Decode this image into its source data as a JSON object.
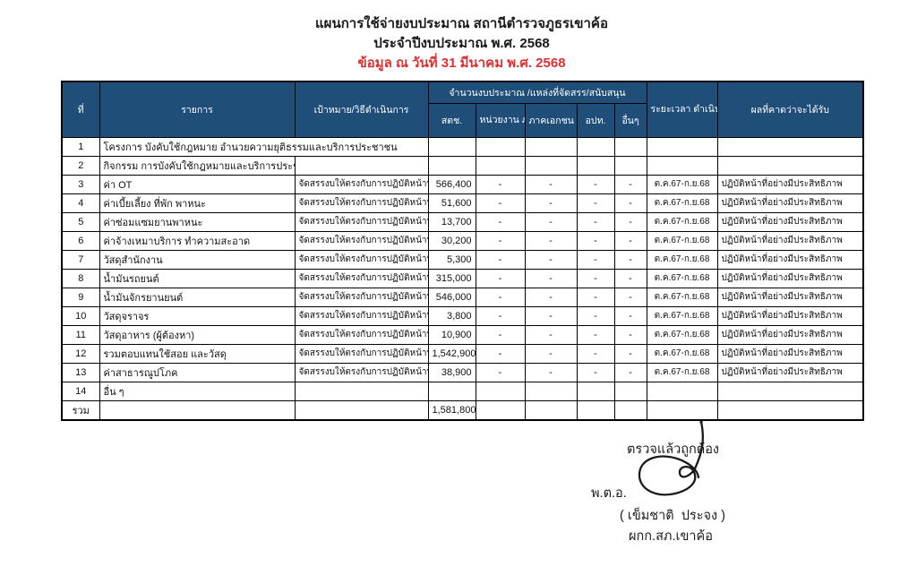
{
  "title": {
    "line1": "แผนการใช้จ่ายงบประมาณ สถานีตำรวจภูธรเขาค้อ",
    "line2": "ประจำปีงบประมาณ พ.ศ. 2568",
    "date_line": "ข้อมูล ณ วันที่ 31 มีนาคม พ.ศ. 2568"
  },
  "colors": {
    "header_bg": "#1F4E79",
    "header_text": "#FFFFFF",
    "date_red": "#E03030",
    "border": "#000000"
  },
  "table": {
    "headers": {
      "no": "ที่",
      "item": "รายการ",
      "target": "เป้าหมาย/วิธีดำเนินการ",
      "budget_group": "จำนวนงบประมาณ /แหล่งที่จัดสรร/สนับสนุน",
      "sources": [
        "สตช.",
        "หน่วยงาน\nภาครัฐ",
        "ภาคเอกชน",
        "อปท.",
        "อื่นๆ"
      ],
      "duration": "ระยะเวลา\nดำเนินการ",
      "result": "ผลที่คาดว่าจะได้รับ"
    },
    "rows": [
      {
        "no": "1",
        "item": "โครงการ บังคับใช้กฎหมาย อำนวยความยุติธรรมและบริการประชาชน",
        "merge": true,
        "target": "",
        "amount": "",
        "gov": "",
        "private": "",
        "local": "",
        "other": "",
        "duration": "",
        "result": ""
      },
      {
        "no": "2",
        "item": "กิจกรรม การบังคับใช้กฎหมายและบริการประชาชน",
        "merge": false,
        "target": "",
        "amount": "",
        "gov": "",
        "private": "",
        "local": "",
        "other": "",
        "duration": "",
        "result": ""
      },
      {
        "no": "3",
        "item": "ค่า OT",
        "merge": false,
        "target": "จัดสรรงบให้ตรงกับการปฏิบัติหน้าที่",
        "amount": "566,400",
        "gov": "-",
        "private": "-",
        "local": "-",
        "other": "-",
        "duration": "ต.ค.67-ก.ย.68",
        "result": "ปฏิบัติหน้าที่อย่างมีประสิทธิภาพ"
      },
      {
        "no": "4",
        "item": "ค่าเบี้ยเลี้ยง ที่พัก พาหนะ",
        "merge": false,
        "target": "จัดสรรงบให้ตรงกับการปฏิบัติหน้าที่",
        "amount": "51,600",
        "gov": "-",
        "private": "-",
        "local": "-",
        "other": "-",
        "duration": "ต.ค.67-ก.ย.68",
        "result": "ปฏิบัติหน้าที่อย่างมีประสิทธิภาพ"
      },
      {
        "no": "5",
        "item": "ค่าซ่อมแซมยานพาหนะ",
        "merge": false,
        "target": "จัดสรรงบให้ตรงกับการปฏิบัติหน้าที่",
        "amount": "13,700",
        "gov": "-",
        "private": "-",
        "local": "-",
        "other": "-",
        "duration": "ต.ค.67-ก.ย.68",
        "result": "ปฏิบัติหน้าที่อย่างมีประสิทธิภาพ"
      },
      {
        "no": "6",
        "item": "ค่าจ้างเหมาบริการ ทำความสะอาด",
        "merge": false,
        "target": "จัดสรรงบให้ตรงกับการปฏิบัติหน้าที่",
        "amount": "30,200",
        "gov": "-",
        "private": "-",
        "local": "-",
        "other": "-",
        "duration": "ต.ค.67-ก.ย.68",
        "result": "ปฏิบัติหน้าที่อย่างมีประสิทธิภาพ"
      },
      {
        "no": "7",
        "item": "วัสดุสำนักงาน",
        "merge": false,
        "target": "จัดสรรงบให้ตรงกับการปฏิบัติหน้าที่",
        "amount": "5,300",
        "gov": "-",
        "private": "-",
        "local": "-",
        "other": "-",
        "duration": "ต.ค.67-ก.ย.68",
        "result": "ปฏิบัติหน้าที่อย่างมีประสิทธิภาพ"
      },
      {
        "no": "8",
        "item": "น้ำมันรถยนต์",
        "merge": false,
        "target": "จัดสรรงบให้ตรงกับการปฏิบัติหน้าที่",
        "amount": "315,000",
        "gov": "-",
        "private": "-",
        "local": "-",
        "other": "-",
        "duration": "ต.ค.67-ก.ย.68",
        "result": "ปฏิบัติหน้าที่อย่างมีประสิทธิภาพ"
      },
      {
        "no": "9",
        "item": "น้ำมันจักรยานยนต์",
        "merge": false,
        "target": "จัดสรรงบให้ตรงกับการปฏิบัติหน้าที่",
        "amount": "546,000",
        "gov": "-",
        "private": "-",
        "local": "-",
        "other": "-",
        "duration": "ต.ค.67-ก.ย.68",
        "result": "ปฏิบัติหน้าที่อย่างมีประสิทธิภาพ"
      },
      {
        "no": "10",
        "item": "วัสดุจราจร",
        "merge": false,
        "target": "จัดสรรงบให้ตรงกับการปฏิบัติหน้าที่",
        "amount": "3,800",
        "gov": "-",
        "private": "-",
        "local": "-",
        "other": "-",
        "duration": "ต.ค.67-ก.ย.68",
        "result": "ปฏิบัติหน้าที่อย่างมีประสิทธิภาพ"
      },
      {
        "no": "11",
        "item": "วัสดุอาหาร (ผู้ต้องหา)",
        "merge": false,
        "target": "จัดสรรงบให้ตรงกับการปฏิบัติหน้าที่",
        "amount": "10,900",
        "gov": "-",
        "private": "-",
        "local": "-",
        "other": "-",
        "duration": "ต.ค.67-ก.ย.68",
        "result": "ปฏิบัติหน้าที่อย่างมีประสิทธิภาพ"
      },
      {
        "no": "12",
        "item": "รวมตอบแทนใช้สอย และวัสดุ",
        "merge": false,
        "target": "จัดสรรงบให้ตรงกับการปฏิบัติหน้าที่",
        "amount": "1,542,900",
        "gov": "-",
        "private": "-",
        "local": "-",
        "other": "-",
        "duration": "ต.ค.67-ก.ย.68",
        "result": "ปฏิบัติหน้าที่อย่างมีประสิทธิภาพ"
      },
      {
        "no": "13",
        "item": "ค่าสาธารณูปโภค",
        "merge": false,
        "target": "จัดสรรงบให้ตรงกับการปฏิบัติหน้าที่",
        "amount": "38,900",
        "gov": "-",
        "private": "-",
        "local": "-",
        "other": "-",
        "duration": "ต.ค.67-ก.ย.68",
        "result": "ปฏิบัติหน้าที่อย่างมีประสิทธิภาพ"
      },
      {
        "no": "14",
        "item": "อื่น ๆ",
        "merge": false,
        "target": "",
        "amount": "",
        "gov": "",
        "private": "",
        "local": "",
        "other": "",
        "duration": "",
        "result": ""
      }
    ],
    "total_row": {
      "no": "รวม",
      "item": "",
      "target": "",
      "amount": "1,581,800",
      "gov": "",
      "private": "",
      "local": "",
      "other": "",
      "duration": "",
      "result": ""
    }
  },
  "approval": {
    "checked_label": "ตรวจแล้วถูกต้อง",
    "rank": "พ.ต.อ.",
    "name": "( เข็มชาติ  ประจง )",
    "position": "ผกก.สภ.เขาค้อ"
  }
}
